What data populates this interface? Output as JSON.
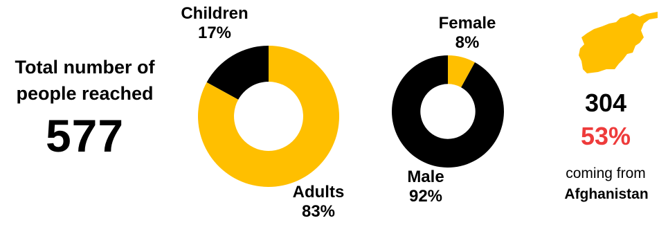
{
  "colors": {
    "primary": "#FFBF00",
    "secondary": "#000000",
    "highlight": "#EE3B3B"
  },
  "total": {
    "label_line1": "Total number of",
    "label_line2": "people reached",
    "value": "577"
  },
  "chart_data": [
    {
      "type": "pie",
      "donut": true,
      "categories": [
        "Adults",
        "Children"
      ],
      "values": [
        83,
        17
      ],
      "labels": [
        "83%",
        "17%"
      ],
      "colors": [
        "#FFBF00",
        "#000000"
      ]
    },
    {
      "type": "pie",
      "donut": true,
      "categories": [
        "Male",
        "Female"
      ],
      "values": [
        92,
        8
      ],
      "labels": [
        "92%",
        "8%"
      ],
      "colors": [
        "#000000",
        "#FFBF00"
      ]
    }
  ],
  "origin": {
    "map_icon": "afghanistan-map-icon",
    "count": "304",
    "percent": "53%",
    "subtitle": "coming from",
    "country": "Afghanistan"
  }
}
